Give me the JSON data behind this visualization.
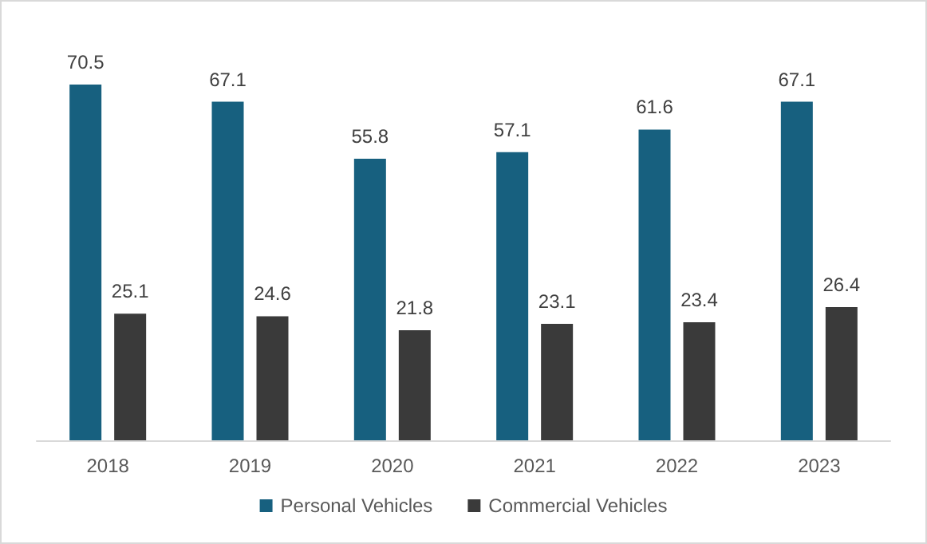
{
  "chart_data": {
    "type": "bar",
    "categories": [
      "2018",
      "2019",
      "2020",
      "2021",
      "2022",
      "2023"
    ],
    "series": [
      {
        "name": "Personal Vehicles",
        "color": "#17607f",
        "values": [
          70.5,
          67.1,
          55.8,
          57.1,
          61.6,
          67.1
        ]
      },
      {
        "name": "Commercial Vehicles",
        "color": "#3a3a3a",
        "values": [
          25.1,
          24.6,
          21.8,
          23.1,
          23.4,
          26.4
        ]
      }
    ],
    "data_labels": true,
    "legend": "bottom",
    "grid": false,
    "tick_labels": "x"
  }
}
